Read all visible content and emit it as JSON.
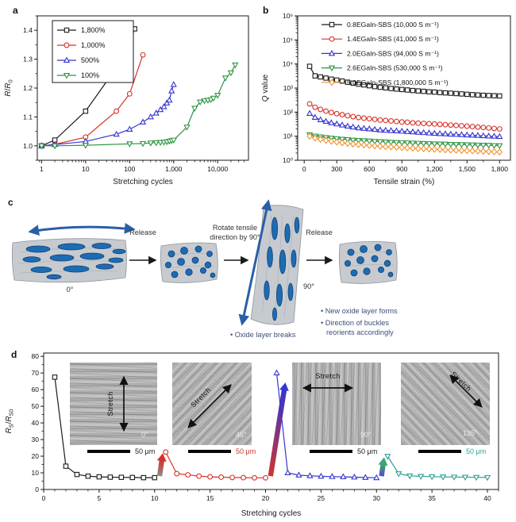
{
  "figure": {
    "background": "#ffffff"
  },
  "panels": {
    "a": {
      "label": "a"
    },
    "b": {
      "label": "b"
    },
    "c": {
      "label": "c",
      "release1": "Release",
      "rotate_line1": "Rotate tensile",
      "rotate_line2": "direction by 90°",
      "release2": "Release",
      "angle_left": "0°",
      "angle_right": "90°",
      "note_oxide": "• Oxide layer breaks",
      "note_new_oxide": "• New oxide layer forms",
      "note_direction1": "• Direction of buckles",
      "note_direction2": "reorients accordingly"
    },
    "d": {
      "label": "d",
      "insets": [
        {
          "stretch_label": "Stretch",
          "angle": "0°",
          "scale": "50 μm",
          "scale_color": "#1a1a1a",
          "orientation": "vertical"
        },
        {
          "stretch_label": "Stretch",
          "angle": "45°",
          "scale": "50 μm",
          "scale_color": "#d0342c",
          "orientation": "diag45"
        },
        {
          "stretch_label": "Stretch",
          "angle": "90°",
          "scale": "50 μm",
          "scale_color": "#1a1a1a",
          "orientation": "horizontal"
        },
        {
          "stretch_label": "Stretch",
          "angle": "135°",
          "scale": "50 μm",
          "scale_color": "#2fa096",
          "orientation": "diag135"
        }
      ]
    }
  },
  "chart_data": [
    {
      "id": "a",
      "type": "line",
      "x_scale": "log",
      "y_scale": "linear",
      "xlabel": "Stretching cycles",
      "ylabel": "R/R0",
      "xlabel_segs": [
        {
          "t": "Stretching cycles"
        }
      ],
      "ylabel_segs": [
        {
          "t": "R",
          "i": 1
        },
        {
          "t": "/"
        },
        {
          "t": "R",
          "i": 1
        },
        {
          "t": "0",
          "sub": 1
        }
      ],
      "xlim": [
        0.8,
        50000
      ],
      "ylim": [
        0.95,
        1.45
      ],
      "x_ticks": {
        "values": [
          1,
          10,
          100,
          1000,
          10000
        ],
        "labels": [
          "1",
          "10",
          "100",
          "1,000",
          "10,000"
        ]
      },
      "y_ticks": {
        "values": [
          1.0,
          1.1,
          1.2,
          1.3,
          1.4
        ],
        "labels": [
          "1.0",
          "1.1",
          "1.2",
          "1.3",
          "1.4"
        ]
      },
      "series": [
        {
          "name": "1,800%",
          "color": "#1a1a1a",
          "marker": "square",
          "x": [
            1,
            2,
            10,
            50,
            100,
            130
          ],
          "y": [
            1.0,
            1.02,
            1.12,
            1.27,
            1.355,
            1.405
          ]
        },
        {
          "name": "1,000%",
          "color": "#d7332a",
          "marker": "circle",
          "x": [
            1,
            2,
            10,
            50,
            100,
            200
          ],
          "y": [
            1.0,
            1.005,
            1.03,
            1.12,
            1.18,
            1.315
          ]
        },
        {
          "name": "500%",
          "color": "#3535cf",
          "marker": "tri-up",
          "x": [
            1,
            2,
            10,
            50,
            100,
            200,
            300,
            400,
            500,
            600,
            700,
            800,
            900,
            1000
          ],
          "y": [
            1.0,
            1.004,
            1.015,
            1.04,
            1.057,
            1.082,
            1.1,
            1.113,
            1.125,
            1.135,
            1.148,
            1.158,
            1.19,
            1.212
          ]
        },
        {
          "name": "100%",
          "color": "#2e9442",
          "marker": "tri-down",
          "x": [
            1,
            2,
            10,
            100,
            200,
            300,
            400,
            500,
            600,
            700,
            800,
            900,
            1000,
            2000,
            3000,
            4000,
            5000,
            6000,
            7000,
            8000,
            10000,
            15000,
            20000,
            25000
          ],
          "y": [
            1.0,
            1.0,
            1.002,
            1.007,
            1.008,
            1.01,
            1.011,
            1.012,
            1.013,
            1.014,
            1.016,
            1.018,
            1.02,
            1.065,
            1.13,
            1.152,
            1.156,
            1.158,
            1.16,
            1.165,
            1.175,
            1.235,
            1.253,
            1.28
          ]
        }
      ]
    },
    {
      "id": "b",
      "type": "line",
      "x_scale": "linear",
      "y_scale": "log",
      "xlabel": "Tensile strain (%)",
      "ylabel": "Q value",
      "xlabel_segs": [
        {
          "t": "Tensile strain (%)"
        }
      ],
      "ylabel_segs": [
        {
          "t": "Q",
          "i": 1
        },
        {
          "t": " value"
        }
      ],
      "xlim": [
        -60,
        1900
      ],
      "ylim": [
        1,
        1000000
      ],
      "x_ticks": {
        "values": [
          0,
          300,
          600,
          900,
          1200,
          1500,
          1800
        ],
        "labels": [
          "0",
          "300",
          "600",
          "900",
          "1,200",
          "1,500",
          "1,800"
        ]
      },
      "y_ticks": {
        "values": [
          1,
          10,
          100,
          1000,
          10000,
          100000,
          1000000
        ],
        "labels": [
          "10⁰",
          "10¹",
          "10²",
          "10³",
          "10⁴",
          "10⁵",
          "10⁶"
        ]
      },
      "x_series": [
        50,
        100,
        150,
        200,
        250,
        300,
        350,
        400,
        450,
        500,
        550,
        600,
        650,
        700,
        750,
        800,
        850,
        900,
        950,
        1000,
        1050,
        1100,
        1150,
        1200,
        1250,
        1300,
        1350,
        1400,
        1450,
        1500,
        1550,
        1600,
        1650,
        1700,
        1750,
        1800
      ],
      "series": [
        {
          "name": "0.8EGaIn-SBS (10,000 S m⁻¹)",
          "color": "#1a1a1a",
          "marker": "square",
          "y": [
            8000,
            3200,
            2900,
            2600,
            2350,
            2150,
            1950,
            1750,
            1600,
            1450,
            1350,
            1250,
            1150,
            1080,
            1020,
            960,
            910,
            870,
            830,
            790,
            760,
            730,
            700,
            680,
            650,
            630,
            610,
            590,
            570,
            550,
            530,
            515,
            500,
            490,
            480,
            470
          ]
        },
        {
          "name": "1.4EGaIn-SBS (41,000 S m⁻¹)",
          "color": "#d7332a",
          "marker": "circle",
          "y": [
            220,
            160,
            130,
            110,
            96,
            86,
            78,
            71,
            65,
            60,
            56,
            53,
            50,
            47,
            45,
            43,
            41,
            39,
            38,
            36,
            35,
            34,
            33,
            32,
            31,
            30,
            29,
            28,
            27,
            26,
            25,
            24,
            23,
            22,
            21,
            20
          ]
        },
        {
          "name": "2.0EGaIn-SBS (94,000 S m⁻¹)",
          "color": "#3535cf",
          "marker": "tri-up",
          "y": [
            88,
            60,
            48,
            41,
            36,
            32,
            29,
            26,
            24,
            22,
            21,
            20,
            19,
            18,
            17.5,
            17,
            16.5,
            16,
            15.5,
            15,
            14.5,
            14,
            13.5,
            13,
            12.7,
            12.4,
            12.1,
            11.8,
            11.5,
            11.2,
            11,
            10.7,
            10.4,
            10.1,
            9.9,
            9.6
          ]
        },
        {
          "name": "2.6EGaIn-SBS (530,000 S m⁻¹)",
          "color": "#2e9442",
          "marker": "tri-down",
          "y": [
            11.5,
            10.2,
            9.4,
            8.8,
            8.3,
            7.9,
            7.5,
            7.2,
            6.9,
            6.7,
            6.5,
            6.3,
            6.1,
            5.9,
            5.8,
            5.6,
            5.5,
            5.4,
            5.3,
            5.2,
            5.1,
            5,
            4.9,
            4.8,
            4.75,
            4.7,
            4.6,
            4.55,
            4.5,
            4.4,
            4.35,
            4.3,
            4.25,
            4.2,
            4.1,
            4.05
          ]
        },
        {
          "name": "5.0EGaIn-SBS (1,800,000 S m⁻¹)",
          "color": "#f0922f",
          "marker": "diamond",
          "y": [
            10,
            8.4,
            7.4,
            6.7,
            6.1,
            5.7,
            5.3,
            5,
            4.7,
            4.5,
            4.3,
            4.1,
            3.95,
            3.8,
            3.65,
            3.55,
            3.45,
            3.35,
            3.25,
            3.15,
            3.05,
            3,
            2.9,
            2.85,
            2.8,
            2.7,
            2.65,
            2.6,
            2.55,
            2.5,
            2.45,
            2.4,
            2.35,
            2.3,
            2.25,
            2.2
          ]
        }
      ]
    },
    {
      "id": "d",
      "type": "line",
      "x_scale": "linear",
      "y_scale": "linear",
      "xlabel": "Stretching cycles",
      "ylabel": "RS/RS0",
      "xlabel_segs": [
        {
          "t": "Stretching cycles"
        }
      ],
      "ylabel_segs": [
        {
          "t": "R",
          "i": 1
        },
        {
          "t": "S",
          "sub": 1
        },
        {
          "t": "/"
        },
        {
          "t": "R",
          "i": 1
        },
        {
          "t": "S0",
          "sub": 1
        }
      ],
      "xlim": [
        0,
        41
      ],
      "ylim": [
        0,
        82
      ],
      "x_ticks": {
        "values": [
          0,
          5,
          10,
          15,
          20,
          25,
          30,
          35,
          40
        ],
        "labels": [
          "0",
          "5",
          "10",
          "15",
          "20",
          "25",
          "30",
          "35",
          "40"
        ]
      },
      "y_ticks": {
        "values": [
          0,
          10,
          20,
          30,
          40,
          50,
          60,
          70,
          80
        ],
        "labels": [
          "0",
          "10",
          "20",
          "30",
          "40",
          "50",
          "60",
          "70",
          "80"
        ]
      },
      "series": [
        {
          "name": "0°",
          "color": "#1a1a1a",
          "marker": "square",
          "x": [
            1,
            2,
            3,
            4,
            5,
            6,
            7,
            8,
            9,
            10
          ],
          "y": [
            67.5,
            14,
            9,
            8,
            7.6,
            7.4,
            7.3,
            7.2,
            7.1,
            7.1
          ]
        },
        {
          "name": "45°",
          "color": "#d7332a",
          "marker": "circle",
          "x": [
            11,
            12,
            13,
            14,
            15,
            16,
            17,
            18,
            19,
            20
          ],
          "y": [
            22.5,
            9.5,
            8.8,
            8,
            7.6,
            7.4,
            7.2,
            7.1,
            7,
            7
          ]
        },
        {
          "name": "90°",
          "color": "#3535cf",
          "marker": "tri-up",
          "x": [
            21,
            22,
            23,
            24,
            25,
            26,
            27,
            28,
            29,
            30
          ],
          "y": [
            70,
            10,
            8.6,
            8.2,
            7.9,
            7.7,
            7.6,
            7.4,
            7.2,
            7
          ]
        },
        {
          "name": "135°",
          "color": "#2fa096",
          "marker": "tri-down",
          "x": [
            31,
            32,
            33,
            34,
            35,
            36,
            37,
            38,
            39,
            40
          ],
          "y": [
            20,
            9.5,
            8.2,
            7.9,
            7.7,
            7.6,
            7.5,
            7.4,
            7.3,
            7.2
          ]
        }
      ],
      "gradient_arrows": [
        {
          "x": 10.45,
          "y1": 9,
          "y2": 21,
          "c1": "#8d8d8d",
          "c2": "#d0342c",
          "tilt": 8
        },
        {
          "x": 20.45,
          "y1": 9,
          "y2": 64,
          "c1": "#d0342c",
          "c2": "#3535cf",
          "tilt": 9
        },
        {
          "x": 30.45,
          "y1": 9,
          "y2": 18.5,
          "c1": "#5548d0",
          "c2": "#3aa86e",
          "tilt": 8
        }
      ]
    }
  ]
}
